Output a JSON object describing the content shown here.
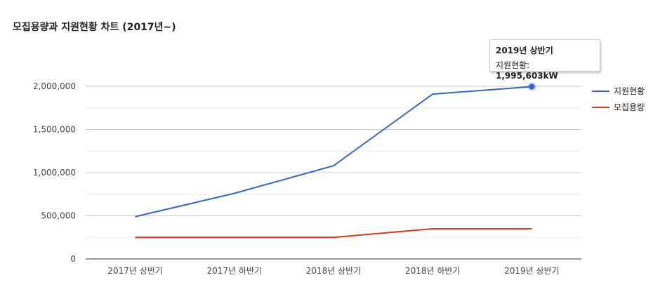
{
  "chart_data": {
    "type": "line",
    "title": "모집용량과 지원현황 차트 (2017년~)",
    "categories": [
      "2017년 상반기",
      "2017년 하반기",
      "2018년 상반기",
      "2018년 하반기",
      "2019년 상반기"
    ],
    "series": [
      {
        "name": "지원현황",
        "color": "#3366cc",
        "values": [
          490000,
          760000,
          1080000,
          1910000,
          1995603
        ]
      },
      {
        "name": "모집용량",
        "color": "#dc3912",
        "values": [
          250000,
          250000,
          250000,
          350000,
          350000
        ]
      }
    ],
    "yticks": [
      0,
      500000,
      1000000,
      1500000,
      2000000
    ],
    "yticks_labels": [
      "0",
      "500,000",
      "1,000,000",
      "1,500,000",
      "2,000,000"
    ],
    "ylim": [
      0,
      2000000
    ],
    "grid": true,
    "legend_position": "right",
    "tooltip": {
      "title": "2019년 상반기",
      "label": "지원현황: ",
      "value": "1,995,603kW"
    }
  }
}
